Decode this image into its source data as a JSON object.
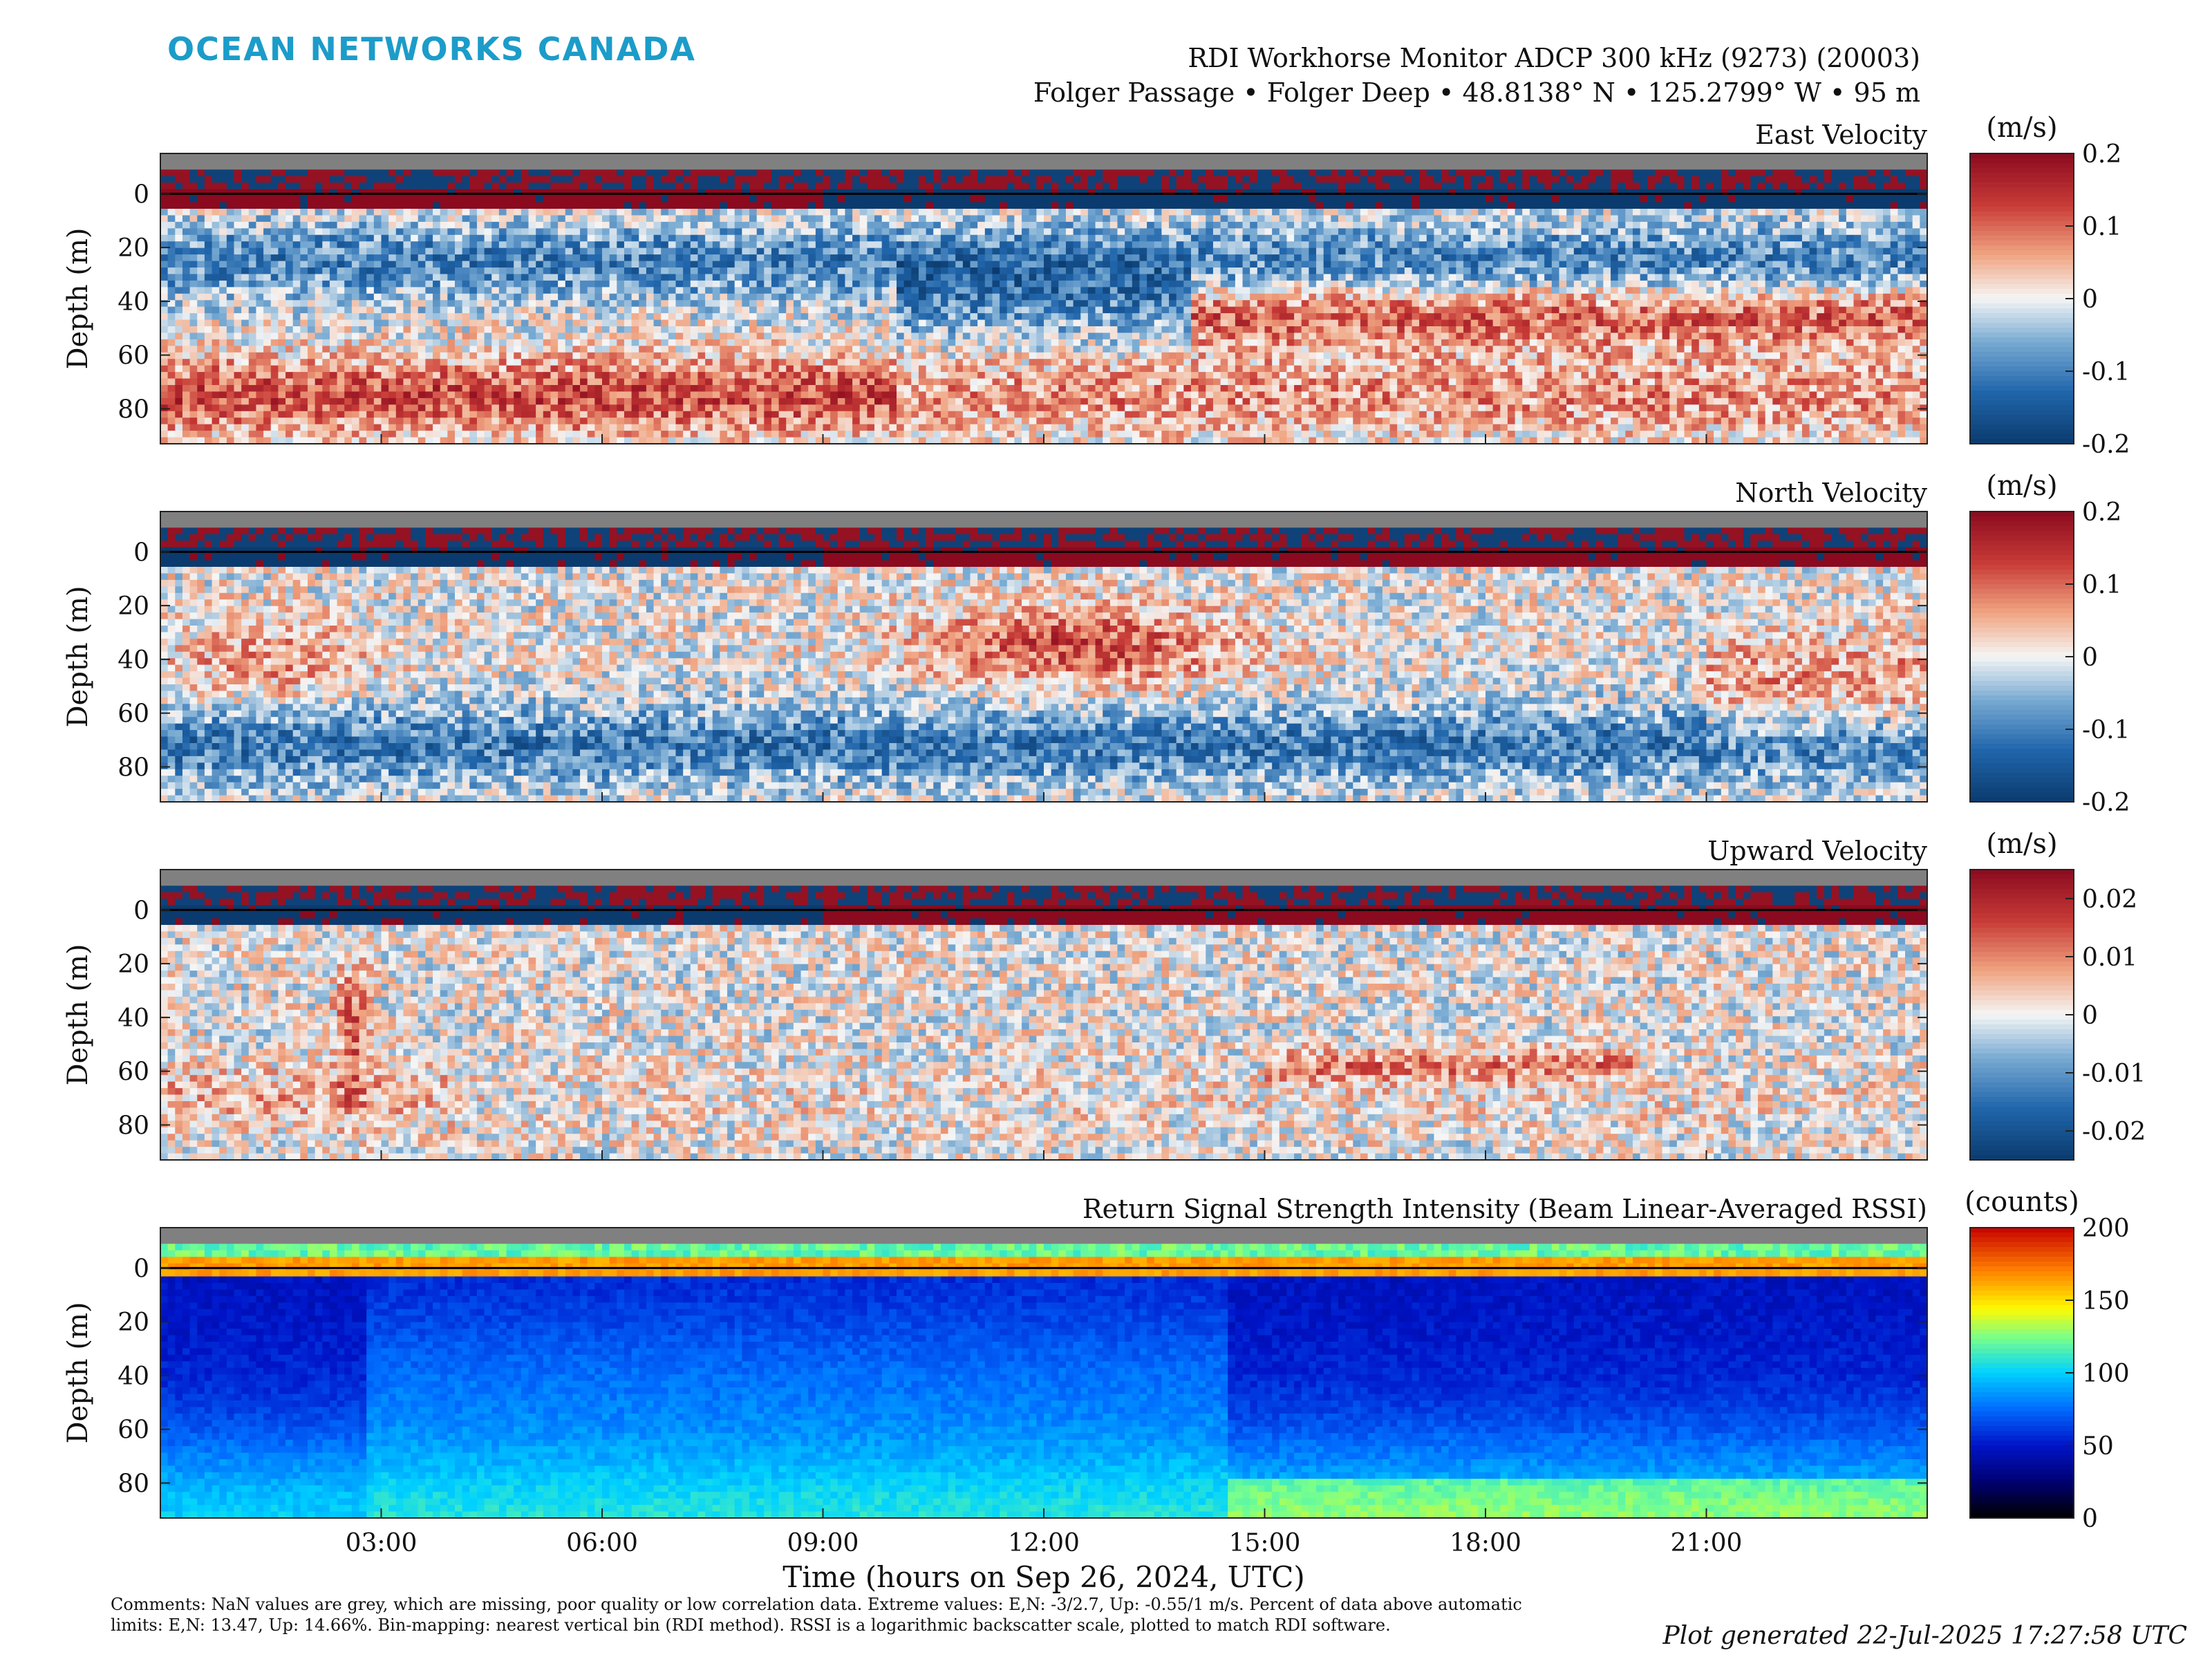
{
  "header": {
    "brand": "OCEAN NETWORKS CANADA",
    "instrument": "RDI Workhorse Monitor ADCP 300 kHz (9273) (20003)",
    "location": "Folger Passage • Folger Deep • 48.8138° N • 125.2799° W • 95 m"
  },
  "chart_data": {
    "type": "heatmap",
    "xlabel": "Time (hours on Sep 26, 2024, UTC)",
    "ylabel": "Depth (m)",
    "x_range_hours": [
      0,
      24
    ],
    "x_ticks": [
      3,
      6,
      9,
      12,
      15,
      18,
      21
    ],
    "x_tick_labels": [
      "03:00",
      "06:00",
      "09:00",
      "12:00",
      "15:00",
      "18:00",
      "21:00"
    ],
    "y_range_m": [
      -15,
      93
    ],
    "y_ticks": [
      0,
      20,
      40,
      60,
      80
    ],
    "y_tick_labels": [
      "0",
      "20",
      "40",
      "60",
      "80"
    ],
    "y_reversed": true,
    "panels": [
      {
        "title": "East Velocity",
        "colormap": "diverging-red-blue",
        "colorbar_label": "(m/s)",
        "clim": [
          -0.2,
          0.2
        ],
        "colorbar_ticks": [
          0.2,
          0.1,
          0,
          -0.1,
          -0.2
        ],
        "colorbar_tick_labels": [
          "0.2",
          "0.1",
          "0",
          "-0.1",
          "-0.2"
        ]
      },
      {
        "title": "North Velocity",
        "colormap": "diverging-red-blue",
        "colorbar_label": "(m/s)",
        "clim": [
          -0.2,
          0.2
        ],
        "colorbar_ticks": [
          0.2,
          0.1,
          0,
          -0.1,
          -0.2
        ],
        "colorbar_tick_labels": [
          "0.2",
          "0.1",
          "0",
          "-0.1",
          "-0.2"
        ]
      },
      {
        "title": "Upward Velocity",
        "colormap": "diverging-red-blue",
        "colorbar_label": "(m/s)",
        "clim": [
          -0.025,
          0.025
        ],
        "colorbar_ticks": [
          0.02,
          0.01,
          0,
          -0.01,
          -0.02
        ],
        "colorbar_tick_labels": [
          "0.02",
          "0.01",
          "0",
          "-0.01",
          "-0.02"
        ]
      },
      {
        "title": "Return Signal Strength Intensity (Beam Linear-Averaged RSSI)",
        "colormap": "jet",
        "colorbar_label": "(counts)",
        "clim": [
          0,
          200
        ],
        "colorbar_ticks": [
          200,
          150,
          100,
          50,
          0
        ],
        "colorbar_tick_labels": [
          "200",
          "150",
          "100",
          "50",
          "0"
        ]
      }
    ],
    "colors": {
      "brand": "#1c9cc9",
      "nan_grey": "#808080",
      "diverging_high": "#8b0a1f",
      "diverging_mid": "#f5f5f5",
      "diverging_low": "#0b3b6e"
    }
  },
  "footer": {
    "comments": "Comments: NaN values are grey, which are missing, poor quality or low correlation data. Extreme values: E,N: -3/2.7, Up: -0.55/1 m/s. Percent of data above automatic limits: E,N: 13.47, Up: 14.66%. Bin-mapping: nearest vertical bin (RDI method). RSSI is a logarithmic backscatter scale, plotted to match RDI software.",
    "generated": "Plot generated 22-Jul-2025 17:27:58 UTC"
  }
}
